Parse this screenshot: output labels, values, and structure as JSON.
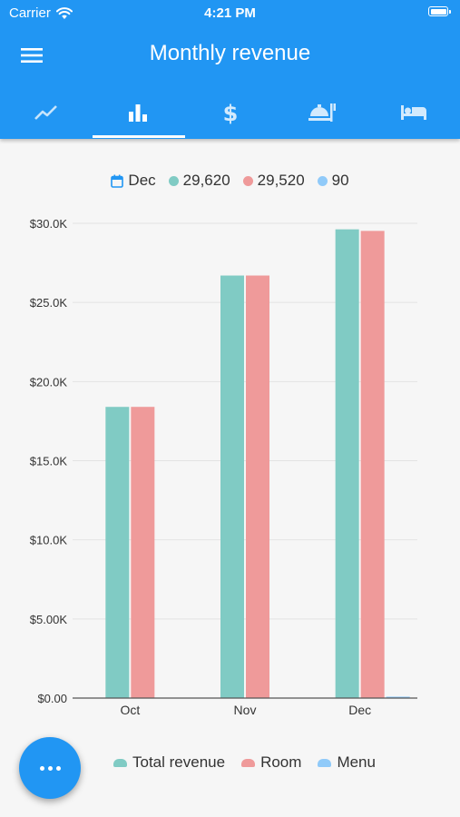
{
  "status_bar": {
    "carrier": "Carrier",
    "time": "4:21 PM"
  },
  "app_bar": {
    "title": "Monthly revenue",
    "tabs": [
      {
        "icon": "trending-line-icon",
        "active": false
      },
      {
        "icon": "bar-chart-icon",
        "active": true
      },
      {
        "icon": "dollar-icon",
        "active": false
      },
      {
        "icon": "room-service-icon",
        "active": false
      },
      {
        "icon": "hotel-bed-icon",
        "active": false
      }
    ]
  },
  "selection_summary": {
    "month": "Dec",
    "total": "29,620",
    "room": "29,520",
    "menu": "90"
  },
  "colors": {
    "accent": "#2196f3",
    "total": "#80cbc4",
    "room": "#ef9a9a",
    "menu": "#90caf9"
  },
  "chart_data": {
    "type": "bar",
    "categories": [
      "Oct",
      "Nov",
      "Dec"
    ],
    "series": [
      {
        "name": "Total revenue",
        "color": "#80cbc4",
        "values": [
          18400,
          26700,
          29620
        ]
      },
      {
        "name": "Room",
        "color": "#ef9a9a",
        "values": [
          18400,
          26700,
          29520
        ]
      },
      {
        "name": "Menu",
        "color": "#90caf9",
        "values": [
          0,
          0,
          90
        ]
      }
    ],
    "y_ticks": [
      0,
      5000,
      10000,
      15000,
      20000,
      25000,
      30000
    ],
    "y_tick_labels": [
      "$0.00",
      "$5.00K",
      "$10.0K",
      "$15.0K",
      "$20.0K",
      "$25.0K",
      "$30.0K"
    ],
    "ylim": [
      0,
      30000
    ],
    "grid": true,
    "legend_position": "bottom"
  },
  "fab": {
    "icon": "more-horizontal-icon"
  }
}
